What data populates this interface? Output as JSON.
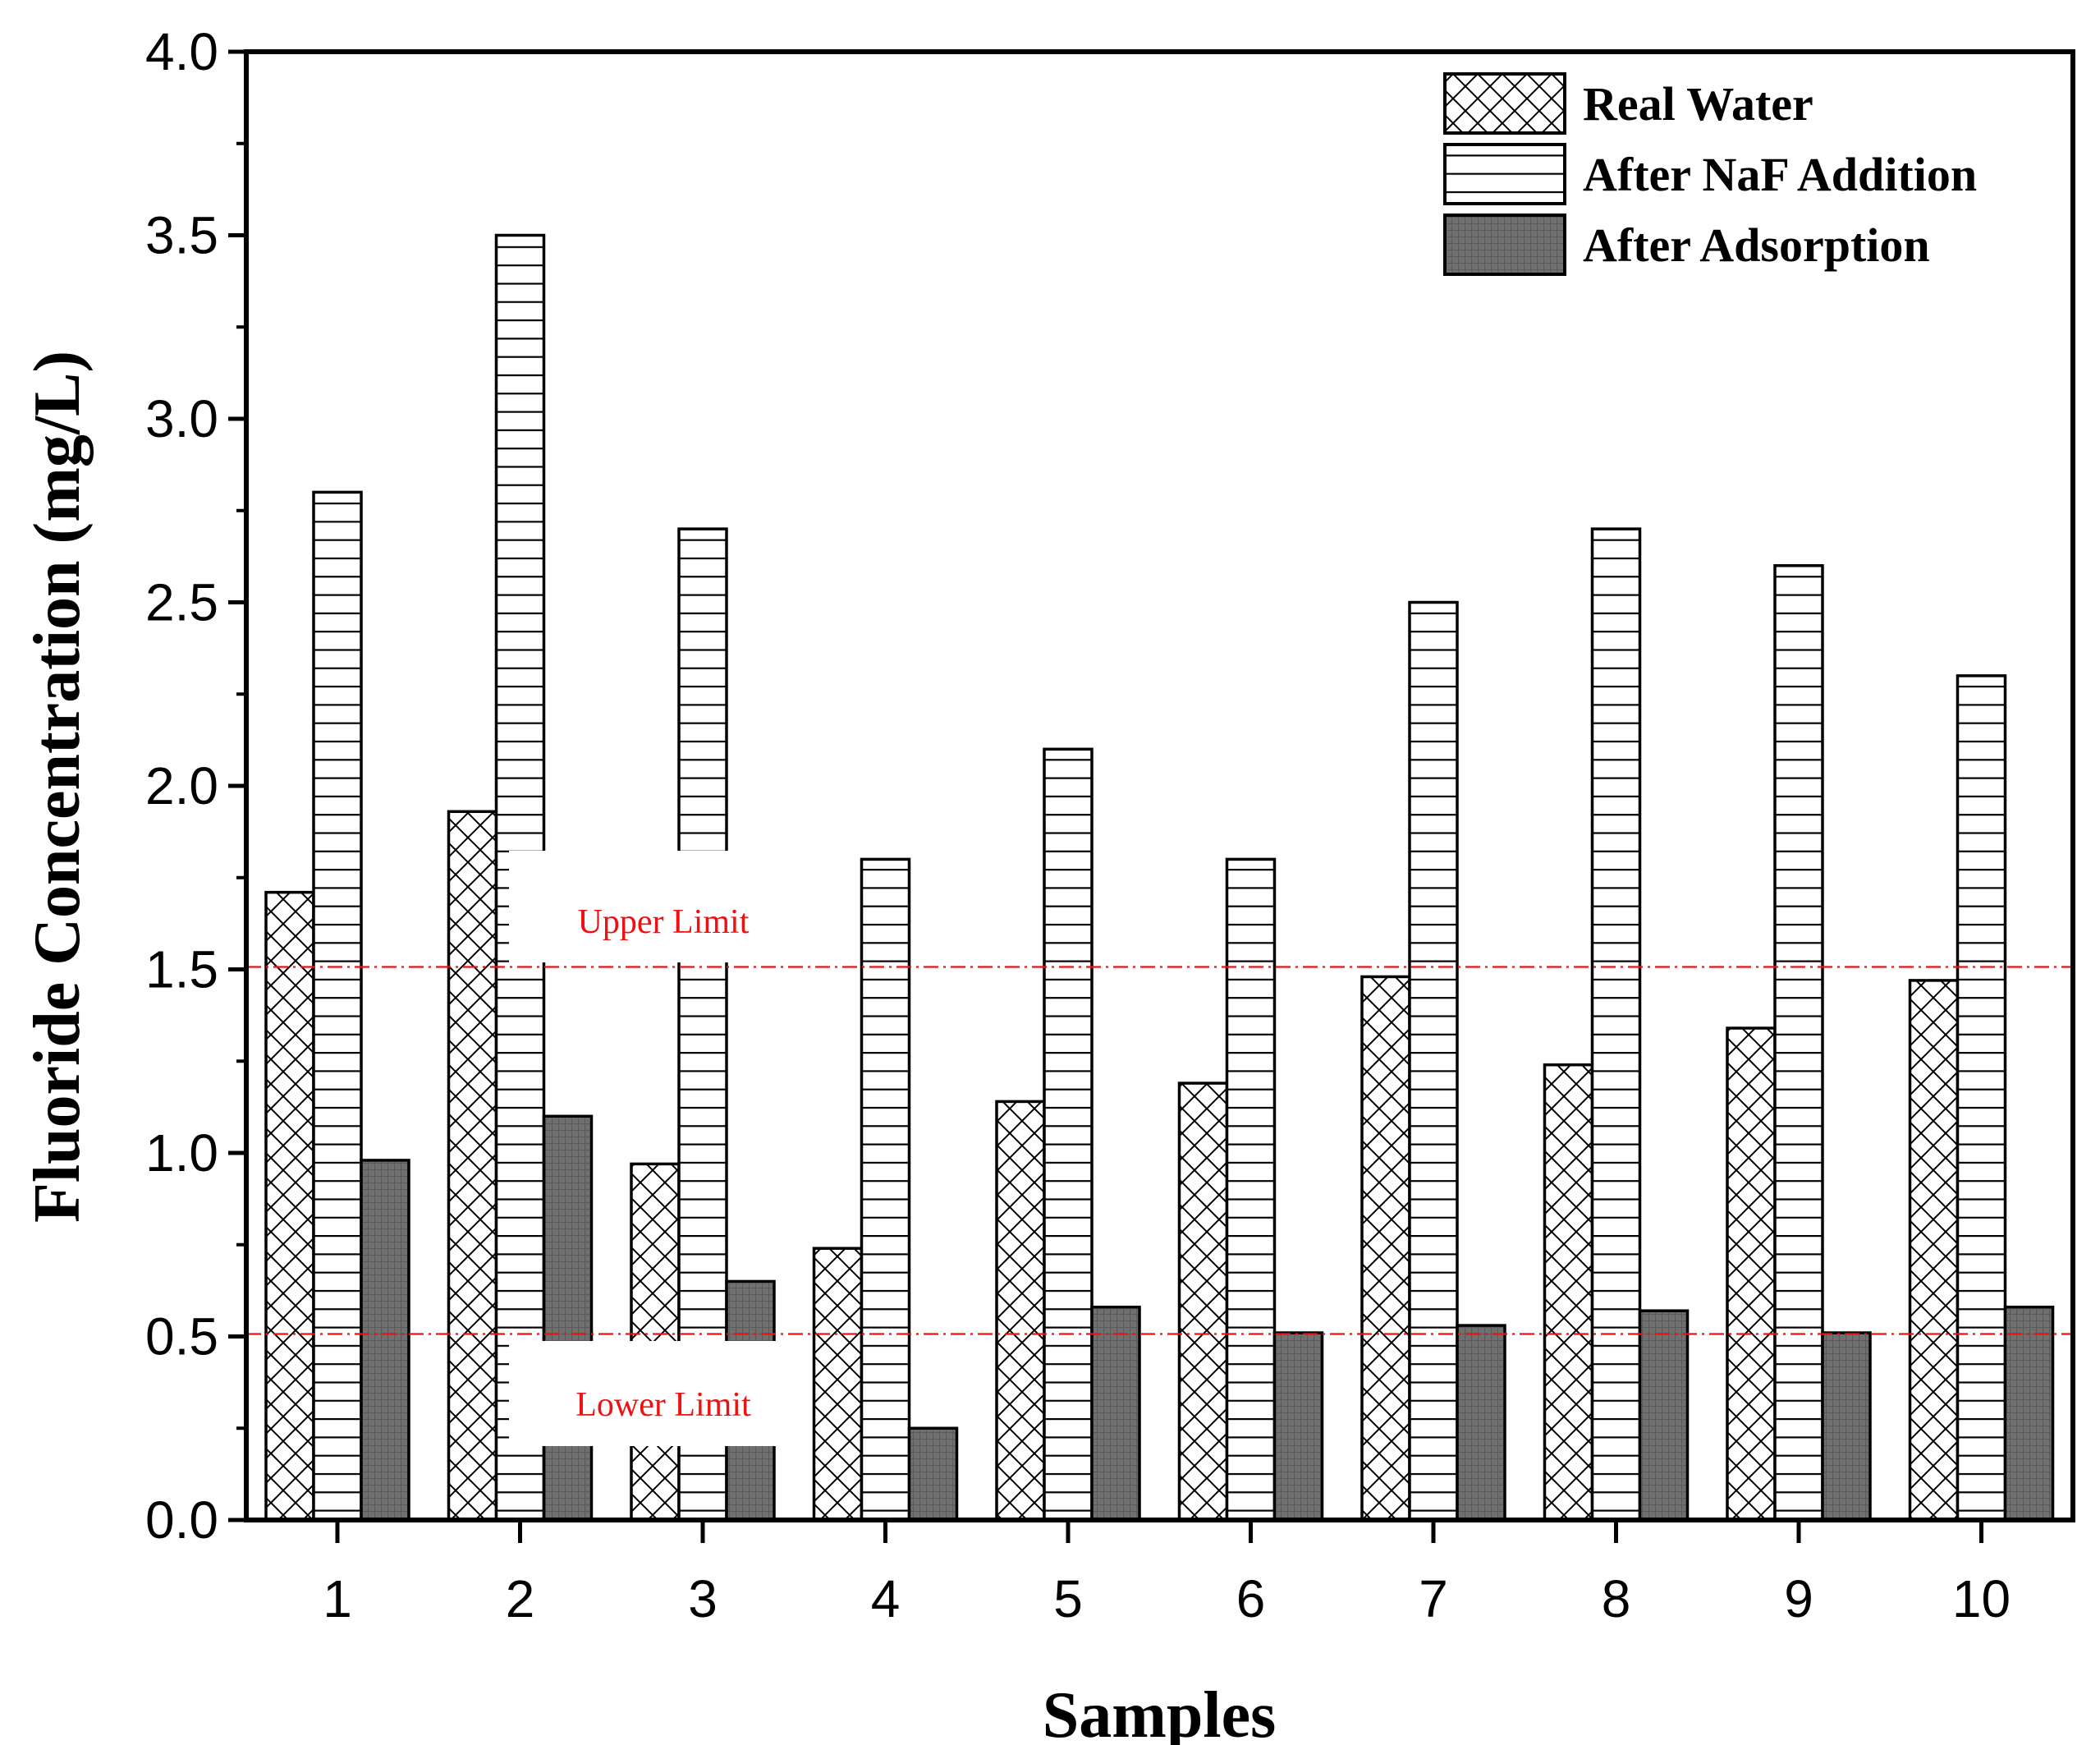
{
  "chart_data": {
    "type": "bar",
    "title": "",
    "xlabel": "Samples",
    "ylabel": "Fluoride Concentration (mg/L)",
    "ylim": [
      0,
      4.0
    ],
    "yticks": [
      "0.0",
      "0.5",
      "1.0",
      "1.5",
      "2.0",
      "2.5",
      "3.0",
      "3.5",
      "4.0"
    ],
    "categories": [
      "1",
      "2",
      "3",
      "4",
      "5",
      "6",
      "7",
      "8",
      "9",
      "10"
    ],
    "series": [
      {
        "name": "Real Water",
        "pattern": "crosshatch",
        "values": [
          1.71,
          1.93,
          0.97,
          0.74,
          1.14,
          1.19,
          1.48,
          1.24,
          1.34,
          1.47
        ]
      },
      {
        "name": "After NaF Addition",
        "pattern": "horizontal",
        "values": [
          2.8,
          3.5,
          2.7,
          1.8,
          2.1,
          1.8,
          2.5,
          2.7,
          2.6,
          2.3
        ]
      },
      {
        "name": "After Adsorption",
        "pattern": "dark-grid",
        "values": [
          0.98,
          1.1,
          0.65,
          0.25,
          0.58,
          0.51,
          0.53,
          0.57,
          0.51,
          0.58
        ]
      }
    ],
    "reference_lines": [
      {
        "label": "Upper Limit",
        "value": 1.5,
        "color": "#ee1111"
      },
      {
        "label": "Lower Limit",
        "value": 0.5,
        "color": "#ee1111"
      }
    ],
    "legend_position": "top-right",
    "grid": false
  }
}
